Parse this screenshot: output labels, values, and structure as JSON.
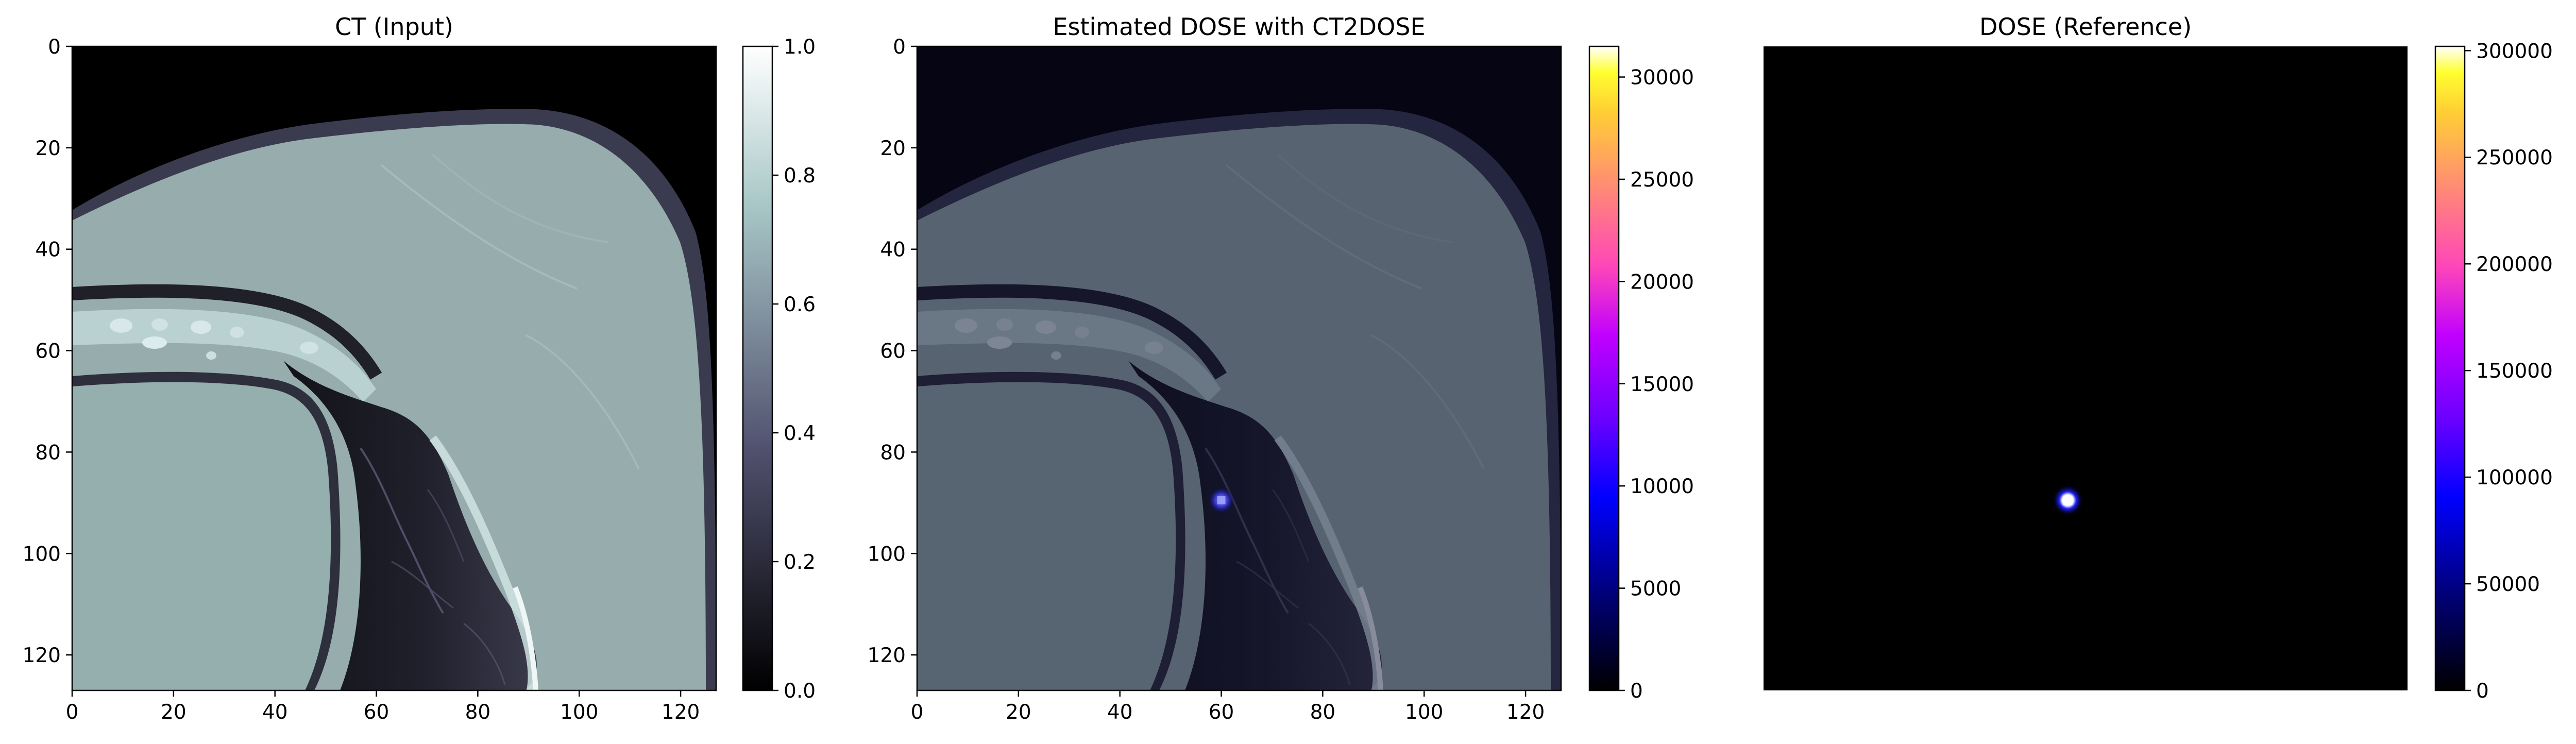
{
  "chart_data": [
    {
      "type": "heatmap",
      "title": "CT (Input)",
      "colormap": "bone",
      "x_ticks": [
        "0",
        "20",
        "40",
        "60",
        "80",
        "100",
        "120"
      ],
      "y_ticks": [
        "0",
        "20",
        "40",
        "60",
        "80",
        "100",
        "120"
      ],
      "xlim": [
        0,
        127
      ],
      "ylim": [
        127,
        0
      ],
      "colorbar": {
        "range": [
          0.0,
          1.0
        ],
        "ticks": [
          "0.0",
          "0.2",
          "0.4",
          "0.6",
          "0.8",
          "1.0"
        ]
      },
      "axes_visible": true
    },
    {
      "type": "heatmap",
      "title": "Estimated DOSE with CT2DOSE",
      "colormap": "gnuplot2",
      "overlay": "CT (bone) with dose overlay",
      "x_ticks": [
        "0",
        "20",
        "40",
        "60",
        "80",
        "100",
        "120"
      ],
      "y_ticks": [
        "0",
        "20",
        "40",
        "60",
        "80",
        "100",
        "120"
      ],
      "xlim": [
        0,
        127
      ],
      "ylim": [
        127,
        0
      ],
      "hotspot": {
        "x": 60,
        "y": 89.5
      },
      "colorbar": {
        "range": [
          0,
          31500
        ],
        "ticks": [
          "0",
          "5000",
          "10000",
          "15000",
          "20000",
          "25000",
          "30000"
        ]
      },
      "axes_visible": true
    },
    {
      "type": "heatmap",
      "title": "DOSE (Reference)",
      "colormap": "gnuplot2",
      "hotspot": {
        "x": 60,
        "y": 89.5
      },
      "colorbar": {
        "range": [
          0,
          302000
        ],
        "ticks": [
          "0",
          "50000",
          "100000",
          "150000",
          "200000",
          "250000",
          "300000"
        ]
      },
      "axes_visible": false
    }
  ]
}
